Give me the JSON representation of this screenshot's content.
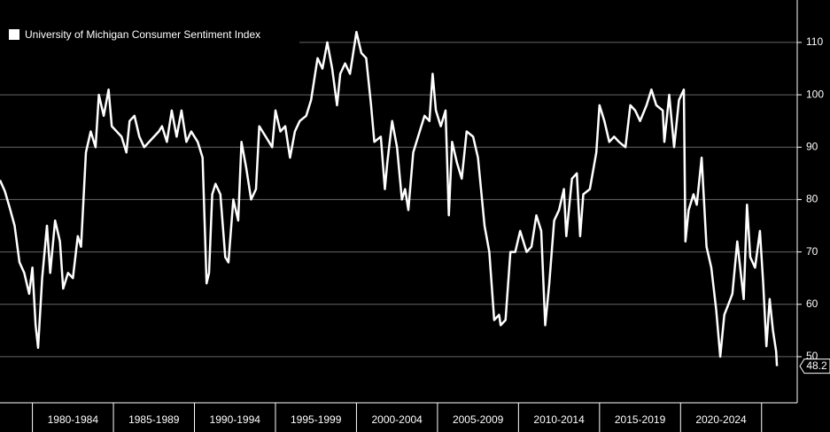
{
  "chart_data": {
    "type": "line",
    "x": [
      1978.0,
      1978.3,
      1978.6,
      1978.9,
      1979.2,
      1979.5,
      1979.8,
      1980.0,
      1980.2,
      1980.35,
      1980.6,
      1980.9,
      1981.1,
      1981.4,
      1981.7,
      1981.9,
      1982.2,
      1982.5,
      1982.8,
      1983.0,
      1983.3,
      1983.6,
      1983.9,
      1984.1,
      1984.4,
      1984.7,
      1984.9,
      1985.2,
      1985.5,
      1985.8,
      1986.0,
      1986.3,
      1986.6,
      1986.9,
      1987.2,
      1987.5,
      1987.8,
      1988.0,
      1988.3,
      1988.6,
      1988.9,
      1989.2,
      1989.5,
      1989.8,
      1990.2,
      1990.5,
      1990.75,
      1990.9,
      1991.1,
      1991.3,
      1991.6,
      1991.9,
      1992.1,
      1992.4,
      1992.7,
      1992.9,
      1993.2,
      1993.5,
      1993.8,
      1994.0,
      1994.4,
      1994.8,
      1995.0,
      1995.3,
      1995.6,
      1995.9,
      1996.2,
      1996.5,
      1996.9,
      1997.2,
      1997.6,
      1997.9,
      1998.2,
      1998.5,
      1998.8,
      1999.0,
      1999.3,
      1999.6,
      2000.0,
      2000.3,
      2000.6,
      2000.9,
      2001.1,
      2001.5,
      2001.75,
      2001.9,
      2002.2,
      2002.5,
      2002.8,
      2003.0,
      2003.2,
      2003.5,
      2003.9,
      2004.2,
      2004.5,
      2004.7,
      2004.9,
      2005.2,
      2005.5,
      2005.7,
      2005.9,
      2006.2,
      2006.5,
      2006.8,
      2007.2,
      2007.5,
      2007.9,
      2008.2,
      2008.5,
      2008.8,
      2008.9,
      2009.2,
      2009.5,
      2009.8,
      2010.1,
      2010.5,
      2010.8,
      2011.1,
      2011.4,
      2011.65,
      2011.9,
      2012.2,
      2012.5,
      2012.8,
      2012.95,
      2013.3,
      2013.6,
      2013.8,
      2014.0,
      2014.4,
      2014.8,
      2015.0,
      2015.3,
      2015.6,
      2015.9,
      2016.2,
      2016.6,
      2016.9,
      2017.2,
      2017.5,
      2017.9,
      2018.2,
      2018.5,
      2018.9,
      2019.0,
      2019.3,
      2019.6,
      2019.9,
      2020.2,
      2020.3,
      2020.5,
      2020.8,
      2021.0,
      2021.3,
      2021.6,
      2021.9,
      2022.2,
      2022.45,
      2022.7,
      2022.95,
      2023.2,
      2023.5,
      2023.9,
      2024.1,
      2024.3,
      2024.6,
      2024.9,
      2025.1,
      2025.3,
      2025.5,
      2025.7,
      2025.8,
      2025.9,
      2025.95
    ],
    "series": [
      {
        "name": "University of Michigan Consumer Sentiment Index",
        "color": "#ffffff",
        "values": [
          83.7,
          81.6,
          78.4,
          75,
          68,
          66,
          62,
          67,
          56,
          51.7,
          65,
          75,
          66,
          76,
          72,
          63,
          66,
          65,
          73,
          71,
          89,
          93,
          90,
          100,
          96,
          101,
          94,
          93,
          92,
          89,
          95,
          96,
          92,
          90,
          91,
          92,
          93,
          94,
          91,
          97,
          92,
          97,
          91,
          93,
          91,
          88,
          64,
          66,
          81,
          83,
          81,
          69,
          68,
          80,
          76,
          91,
          86,
          80,
          82,
          94,
          92,
          90,
          97,
          93,
          94,
          88,
          93,
          95,
          96,
          99,
          107,
          105,
          110,
          105,
          98,
          104,
          106,
          104,
          112,
          108,
          107,
          98,
          91,
          92,
          82,
          87,
          95,
          90,
          80,
          82,
          78,
          89,
          93,
          96,
          95,
          104,
          97,
          94,
          97,
          77,
          91,
          87,
          84,
          93,
          92,
          88,
          75,
          70,
          57,
          58,
          56,
          57,
          70,
          70,
          74,
          70,
          71,
          77,
          74,
          56,
          64,
          76,
          78,
          82,
          73,
          84,
          85,
          73,
          81,
          82,
          89,
          98,
          95,
          91,
          92,
          91,
          90,
          98,
          97,
          95,
          98,
          101,
          98,
          97,
          91,
          100,
          90,
          99,
          101,
          72,
          78,
          81,
          79,
          88,
          71,
          67,
          59,
          50,
          58,
          60,
          62,
          72,
          61,
          79,
          69,
          67,
          74,
          64,
          52,
          61,
          55,
          53,
          51,
          48.2
        ]
      }
    ],
    "xlim": [
      1978,
      2027.2
    ],
    "xticks": [
      {
        "value": 1982.5,
        "label": "1980-1984"
      },
      {
        "value": 1987.5,
        "label": "1985-1989"
      },
      {
        "value": 1992.5,
        "label": "1990-1994"
      },
      {
        "value": 1997.5,
        "label": "1995-1999"
      },
      {
        "value": 2002.5,
        "label": "2000-2004"
      },
      {
        "value": 2007.5,
        "label": "2005-2009"
      },
      {
        "value": 2012.5,
        "label": "2010-2014"
      },
      {
        "value": 2017.5,
        "label": "2015-2019"
      },
      {
        "value": 2022.5,
        "label": "2020-2024"
      }
    ],
    "ylim": [
      41.2,
      118.1
    ],
    "yticks": [
      50,
      60,
      70,
      80,
      90,
      100,
      110
    ],
    "grid": true,
    "legend": "top-left"
  }
}
